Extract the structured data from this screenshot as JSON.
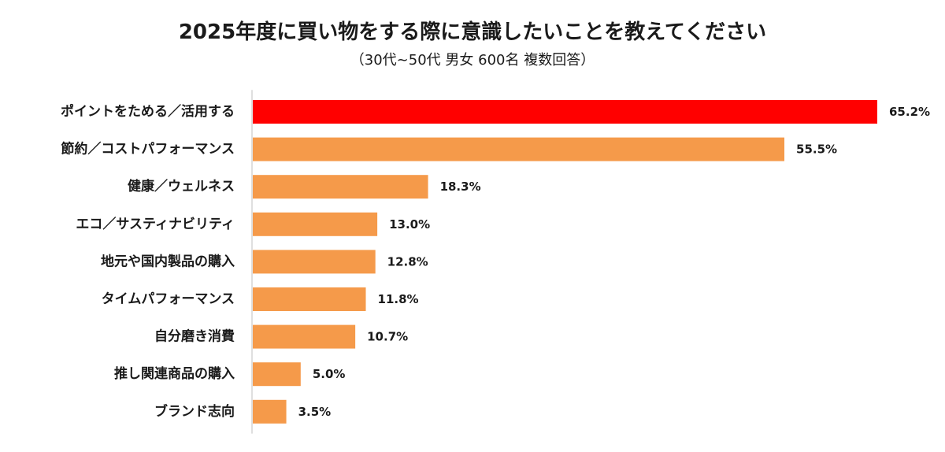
{
  "chart_data": {
    "type": "bar",
    "orientation": "horizontal",
    "title": "2025年度に買い物をする際に意識したいことを教えてください",
    "subtitle": "（30代~50代 男女 600名 複数回答）",
    "categories": [
      "ポイントをためる／活用する",
      "節約／コストパフォーマンス",
      "健康／ウェルネス",
      "エコ／サスティナビリティ",
      "地元や国内製品の購入",
      "タイムパフォーマンス",
      "自分磨き消費",
      "推し関連商品の購入",
      "ブランド志向"
    ],
    "values": [
      65.2,
      55.5,
      18.3,
      13.0,
      12.8,
      11.8,
      10.7,
      5.0,
      3.5
    ],
    "value_labels": [
      "65.2%",
      "55.5%",
      "18.3%",
      "13.0%",
      "12.8%",
      "11.8%",
      "10.7%",
      "5.0%",
      "3.5%"
    ],
    "unit": "%",
    "xlim": [
      0,
      65.2
    ],
    "highlight_index": 0,
    "colors": {
      "highlight": "#ff0000",
      "bar": "#f59a4a",
      "axis": "#bfbfbf"
    },
    "grid": false,
    "legend": "none"
  }
}
